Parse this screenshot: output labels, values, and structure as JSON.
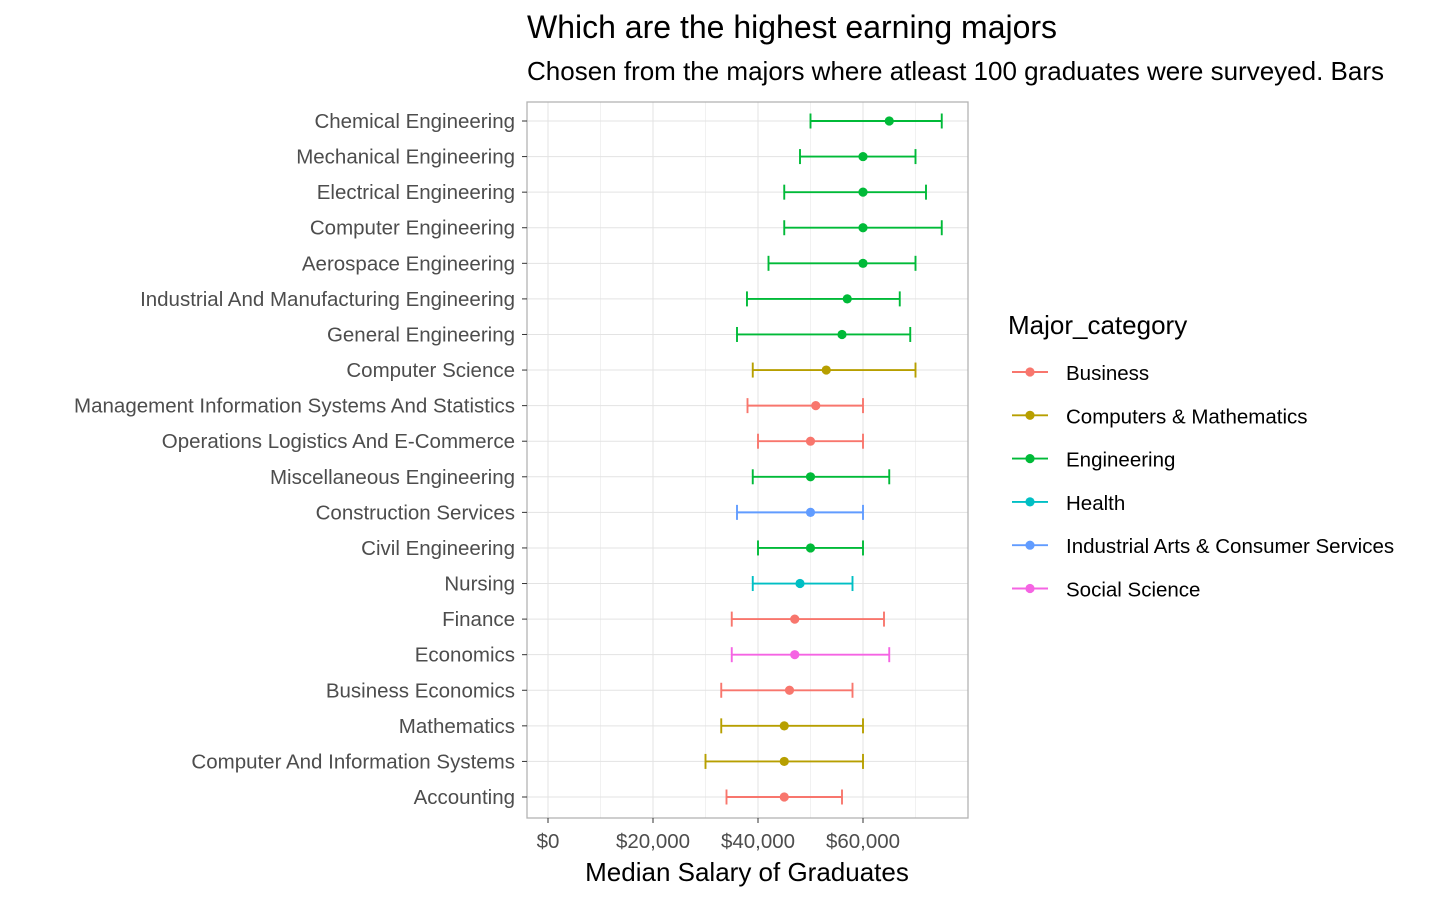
{
  "chart_data": {
    "type": "errorbar",
    "title": "Which are the highest earning majors",
    "subtitle": "Chosen from the majors where atleast 100 graduates were surveyed. Bars",
    "xlabel": "Median Salary of Graduates",
    "ylabel": "",
    "xlim": [
      -4000,
      80000
    ],
    "x_ticks": [
      {
        "value": 0,
        "label": "$0"
      },
      {
        "value": 20000,
        "label": "$20,000"
      },
      {
        "value": 40000,
        "label": "$40,000"
      },
      {
        "value": 60000,
        "label": "$60,000"
      }
    ],
    "grid": true,
    "legend": {
      "title": "Major_category",
      "position": "right",
      "items": [
        {
          "name": "Business",
          "color": "#F8766D"
        },
        {
          "name": "Computers & Mathematics",
          "color": "#B79F00"
        },
        {
          "name": "Engineering",
          "color": "#00BA38"
        },
        {
          "name": "Health",
          "color": "#00BFC4"
        },
        {
          "name": "Industrial Arts & Consumer Services",
          "color": "#619CFF"
        },
        {
          "name": "Social Science",
          "color": "#F564E3"
        }
      ]
    },
    "rows": [
      {
        "major": "Chemical Engineering",
        "category": "Engineering",
        "median": 65000,
        "p25": 50000,
        "p75": 75000
      },
      {
        "major": "Mechanical Engineering",
        "category": "Engineering",
        "median": 60000,
        "p25": 48000,
        "p75": 70000
      },
      {
        "major": "Electrical Engineering",
        "category": "Engineering",
        "median": 60000,
        "p25": 45000,
        "p75": 72000
      },
      {
        "major": "Computer Engineering",
        "category": "Engineering",
        "median": 60000,
        "p25": 45000,
        "p75": 75000
      },
      {
        "major": "Aerospace Engineering",
        "category": "Engineering",
        "median": 60000,
        "p25": 42000,
        "p75": 70000
      },
      {
        "major": "Industrial And Manufacturing Engineering",
        "category": "Engineering",
        "median": 57000,
        "p25": 37900,
        "p75": 67000
      },
      {
        "major": "General Engineering",
        "category": "Engineering",
        "median": 56000,
        "p25": 36000,
        "p75": 69000
      },
      {
        "major": "Computer Science",
        "category": "Computers & Mathematics",
        "median": 53000,
        "p25": 39000,
        "p75": 70000
      },
      {
        "major": "Management Information Systems And Statistics",
        "category": "Business",
        "median": 51000,
        "p25": 38000,
        "p75": 60000
      },
      {
        "major": "Operations Logistics And E-Commerce",
        "category": "Business",
        "median": 50000,
        "p25": 40000,
        "p75": 60000
      },
      {
        "major": "Miscellaneous Engineering",
        "category": "Engineering",
        "median": 50000,
        "p25": 39000,
        "p75": 65000
      },
      {
        "major": "Construction Services",
        "category": "Industrial Arts & Consumer Services",
        "median": 50000,
        "p25": 36000,
        "p75": 60000
      },
      {
        "major": "Civil Engineering",
        "category": "Engineering",
        "median": 50000,
        "p25": 40000,
        "p75": 60000
      },
      {
        "major": "Nursing",
        "category": "Health",
        "median": 48000,
        "p25": 39000,
        "p75": 58000
      },
      {
        "major": "Finance",
        "category": "Business",
        "median": 47000,
        "p25": 35000,
        "p75": 64000
      },
      {
        "major": "Economics",
        "category": "Social Science",
        "median": 47000,
        "p25": 35000,
        "p75": 65000
      },
      {
        "major": "Business Economics",
        "category": "Business",
        "median": 46000,
        "p25": 33000,
        "p75": 58000
      },
      {
        "major": "Mathematics",
        "category": "Computers & Mathematics",
        "median": 45000,
        "p25": 33000,
        "p75": 60000
      },
      {
        "major": "Computer And Information Systems",
        "category": "Computers & Mathematics",
        "median": 45000,
        "p25": 30000,
        "p75": 60000
      },
      {
        "major": "Accounting",
        "category": "Business",
        "median": 45000,
        "p25": 34000,
        "p75": 56000
      }
    ]
  }
}
